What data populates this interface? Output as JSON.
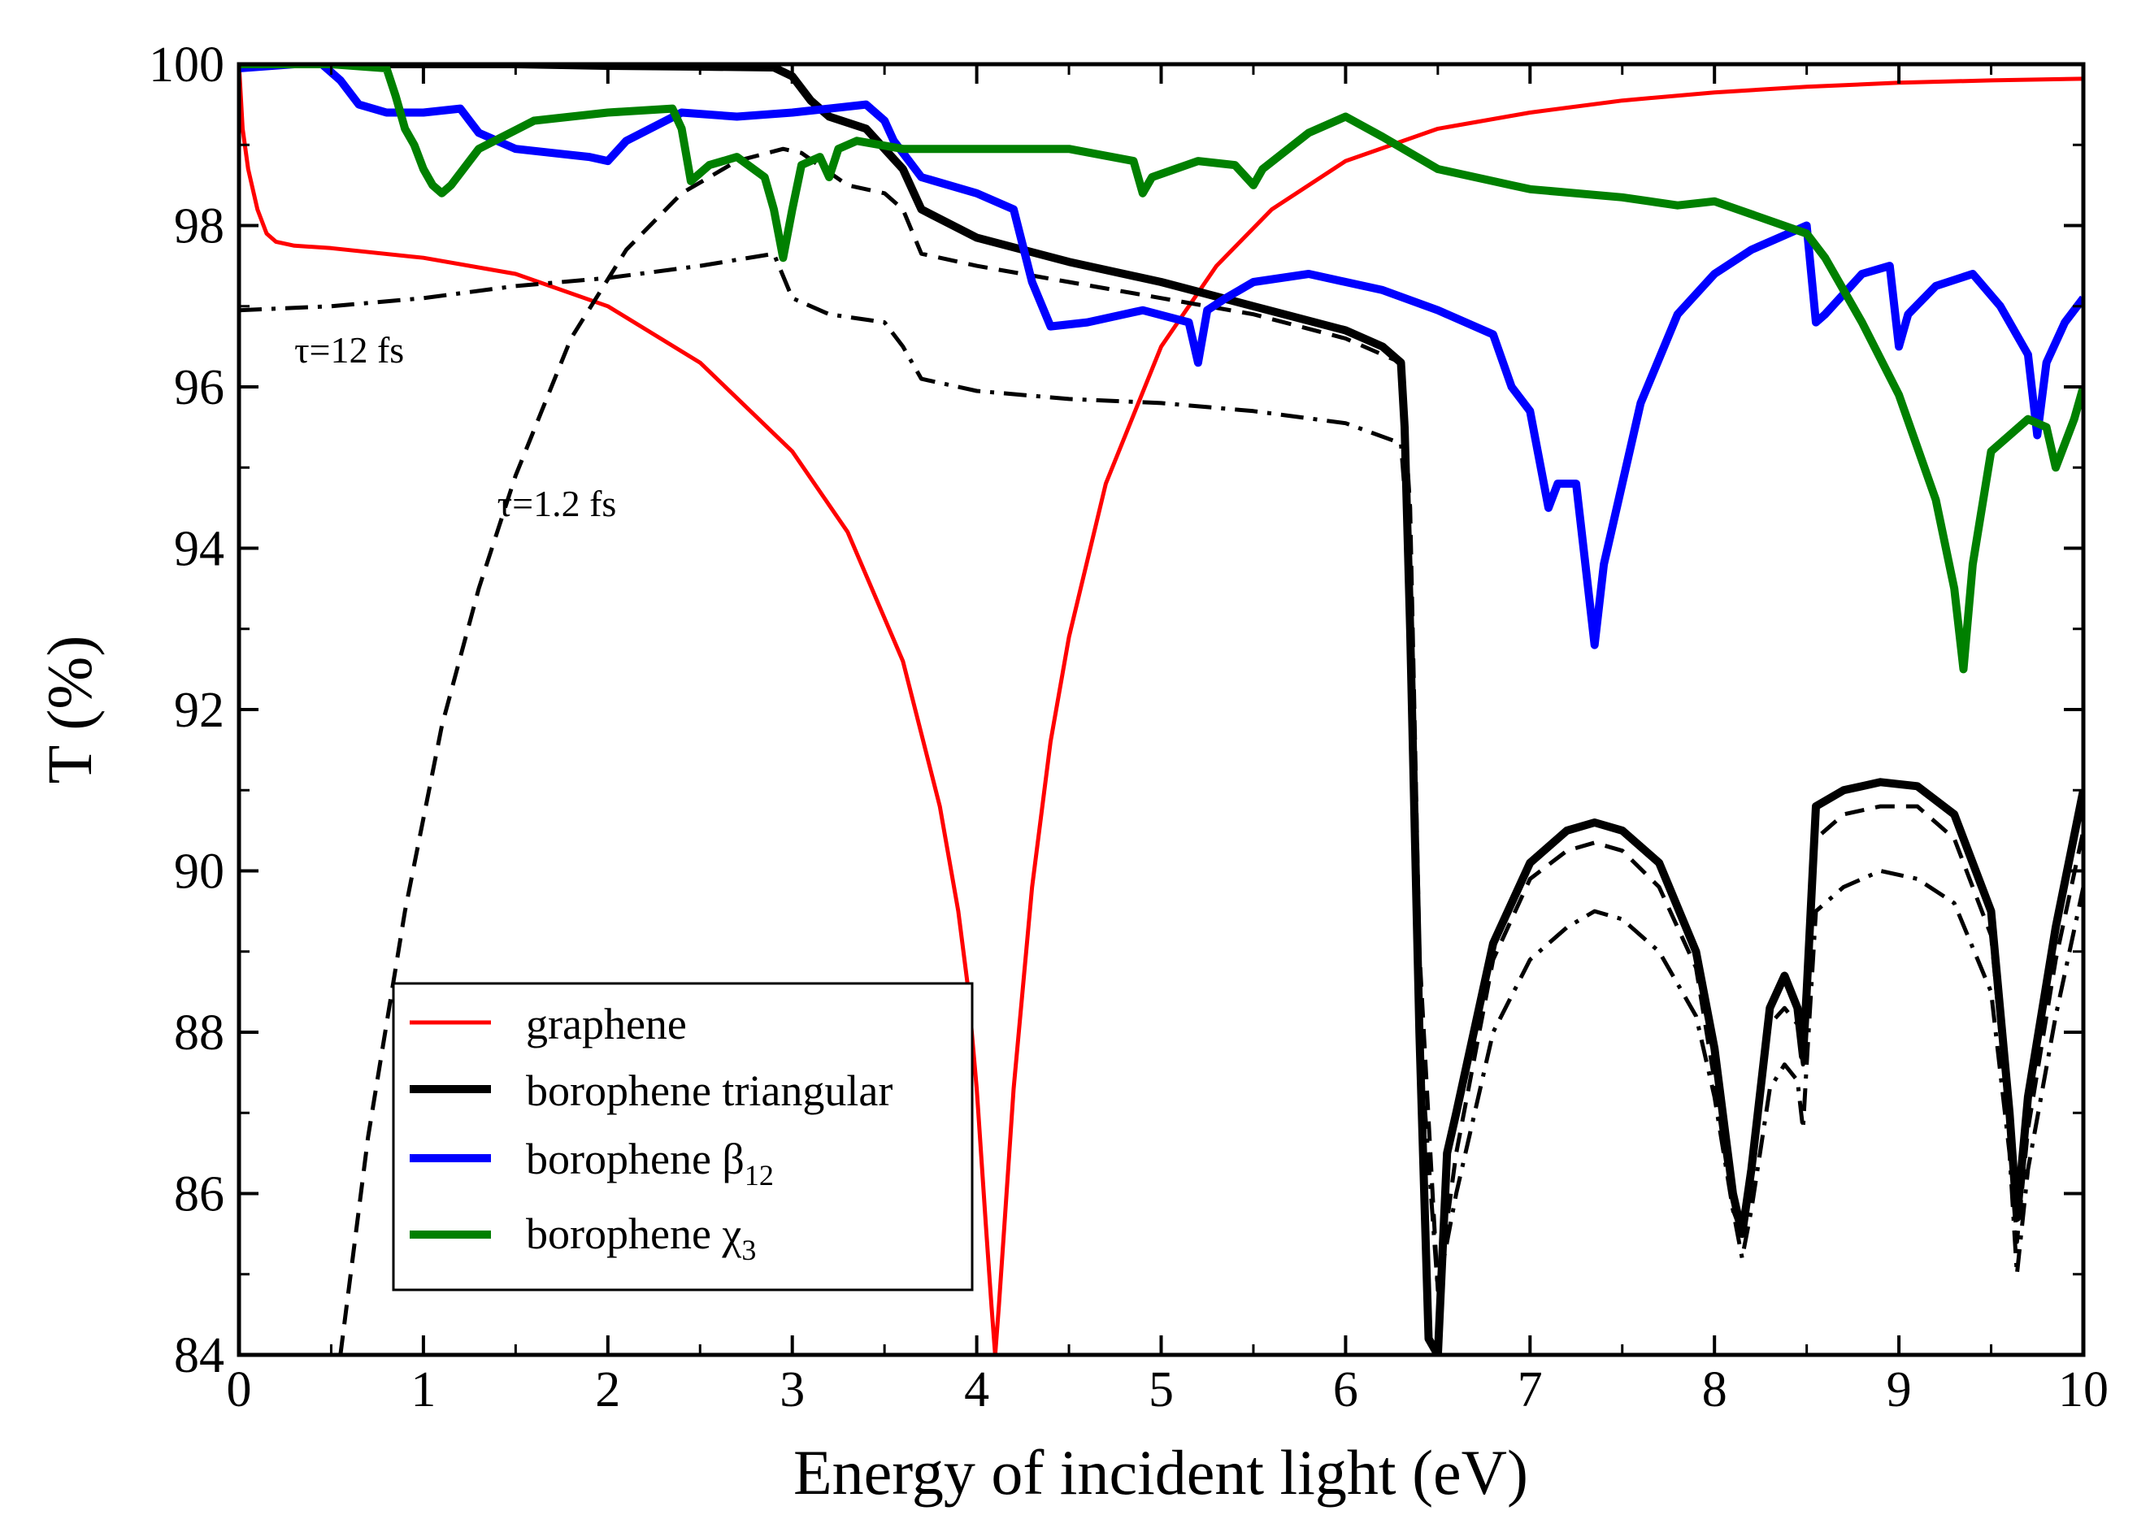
{
  "chart_data": {
    "type": "line",
    "title": "",
    "xlabel": "Energy of incident light (eV)",
    "ylabel": "T (%)",
    "xlim": [
      0,
      10
    ],
    "ylim": [
      84,
      100
    ],
    "xticks": [
      "0",
      "1",
      "2",
      "3",
      "4",
      "5",
      "6",
      "7",
      "8",
      "9",
      "10"
    ],
    "yticks": [
      "84",
      "86",
      "88",
      "90",
      "92",
      "94",
      "96",
      "98",
      "100"
    ],
    "legend": {
      "placement": "lower-left",
      "entries": [
        {
          "main": "graphene",
          "sub": "",
          "color": "#ff0000"
        },
        {
          "main": "borophene triangular",
          "sub": "",
          "color": "#000000"
        },
        {
          "main": "borophene β",
          "sub": "12",
          "color": "#0000ff"
        },
        {
          "main": "borophene χ",
          "sub": "3",
          "color": "#008000"
        }
      ]
    },
    "annotations": [
      {
        "text": "τ=12 fs",
        "x": 0.3,
        "y": 96.3
      },
      {
        "text": "τ=1.2 fs",
        "x": 1.4,
        "y": 94.4
      }
    ],
    "series": [
      {
        "name": "graphene",
        "color": "#ff0000",
        "width": 5,
        "dash": "",
        "x": [
          0,
          0.02,
          0.05,
          0.1,
          0.15,
          0.2,
          0.3,
          0.5,
          1,
          1.5,
          2,
          2.5,
          3,
          3.3,
          3.6,
          3.8,
          3.9,
          3.95,
          4.0,
          4.05,
          4.08,
          4.1,
          4.12,
          4.15,
          4.2,
          4.3,
          4.4,
          4.5,
          4.7,
          5,
          5.3,
          5.6,
          6,
          6.5,
          7,
          7.5,
          8,
          8.5,
          9,
          9.5,
          10
        ],
        "y": [
          100,
          99.2,
          98.7,
          98.2,
          97.9,
          97.8,
          97.75,
          97.72,
          97.6,
          97.4,
          97.0,
          96.3,
          95.2,
          94.2,
          92.6,
          90.8,
          89.5,
          88.6,
          87.3,
          85.6,
          84.6,
          84.0,
          84.6,
          85.6,
          87.3,
          89.8,
          91.6,
          92.9,
          94.8,
          96.5,
          97.5,
          98.2,
          98.8,
          99.2,
          99.4,
          99.55,
          99.65,
          99.72,
          99.77,
          99.8,
          99.82
        ]
      },
      {
        "name": "borophene triangular",
        "color": "#000000",
        "width": 10,
        "dash": "",
        "x": [
          0,
          0.5,
          1,
          1.5,
          2,
          2.5,
          2.9,
          3.0,
          3.1,
          3.2,
          3.4,
          3.6,
          3.7,
          4,
          4.5,
          5,
          5.5,
          6,
          6.2,
          6.3,
          6.32,
          6.35,
          6.4,
          6.45,
          6.5,
          6.55,
          6.6,
          6.8,
          7,
          7.2,
          7.35,
          7.5,
          7.7,
          7.9,
          8.0,
          8.1,
          8.15,
          8.2,
          8.3,
          8.38,
          8.45,
          8.48,
          8.5,
          8.55,
          8.7,
          8.9,
          9.1,
          9.3,
          9.5,
          9.6,
          9.64,
          9.7,
          9.85,
          10
        ],
        "y": [
          100,
          100,
          100,
          100,
          99.98,
          99.97,
          99.96,
          99.85,
          99.55,
          99.35,
          99.2,
          98.7,
          98.2,
          97.85,
          97.55,
          97.3,
          97.0,
          96.7,
          96.5,
          96.3,
          95.5,
          93.0,
          88.0,
          84.2,
          84.0,
          86.5,
          87.0,
          89.1,
          90.1,
          90.5,
          90.6,
          90.5,
          90.1,
          89.0,
          87.8,
          86.0,
          85.5,
          86.3,
          88.3,
          88.7,
          88.3,
          87.7,
          88.5,
          90.8,
          91.0,
          91.1,
          91.05,
          90.7,
          89.5,
          87.0,
          85.7,
          87.2,
          89.3,
          91.0
        ]
      },
      {
        "name": "τ=1.2 fs",
        "color": "#000000",
        "width": 5,
        "dash": "24,14",
        "x": [
          0.55,
          0.7,
          0.9,
          1.1,
          1.3,
          1.5,
          1.8,
          2.1,
          2.4,
          2.7,
          2.95,
          3.05,
          3.3,
          3.5,
          3.6,
          3.7,
          4,
          4.5,
          5,
          5.5,
          6,
          6.2,
          6.3,
          6.35,
          6.4,
          6.5,
          6.6,
          6.8,
          7,
          7.2,
          7.35,
          7.5,
          7.7,
          7.9,
          8.0,
          8.1,
          8.15,
          8.2,
          8.3,
          8.38,
          8.45,
          8.48,
          8.5,
          8.55,
          8.7,
          8.9,
          9.1,
          9.3,
          9.5,
          9.6,
          9.64,
          9.7,
          9.85,
          10
        ],
        "y": [
          84,
          86.7,
          89.5,
          91.8,
          93.5,
          94.9,
          96.6,
          97.7,
          98.4,
          98.8,
          98.95,
          98.9,
          98.5,
          98.4,
          98.2,
          97.65,
          97.5,
          97.3,
          97.1,
          96.9,
          96.6,
          96.4,
          96.3,
          94.5,
          89.0,
          84.8,
          86.5,
          88.9,
          89.9,
          90.25,
          90.35,
          90.25,
          89.8,
          88.8,
          87.4,
          85.8,
          85.5,
          86.3,
          88.1,
          88.3,
          88.1,
          87.6,
          88.4,
          90.4,
          90.7,
          90.8,
          90.8,
          90.4,
          89.2,
          86.8,
          85.4,
          86.8,
          88.9,
          90.5
        ]
      },
      {
        "name": "τ=12 fs",
        "color": "#000000",
        "width": 5,
        "dash": "28,12,5,12",
        "x": [
          0,
          0.5,
          1,
          1.5,
          2,
          2.5,
          2.9,
          3.0,
          3.2,
          3.5,
          3.6,
          3.7,
          4,
          4.5,
          5,
          5.5,
          6,
          6.3,
          6.35,
          6.4,
          6.5,
          6.6,
          6.8,
          7,
          7.2,
          7.35,
          7.5,
          7.7,
          7.9,
          8.0,
          8.1,
          8.15,
          8.2,
          8.3,
          8.38,
          8.45,
          8.48,
          8.5,
          8.55,
          8.7,
          8.9,
          9.1,
          9.3,
          9.5,
          9.6,
          9.64,
          9.7,
          9.85,
          10
        ],
        "y": [
          96.95,
          97.0,
          97.1,
          97.25,
          97.35,
          97.5,
          97.65,
          97.1,
          96.9,
          96.8,
          96.5,
          96.1,
          95.95,
          95.85,
          95.8,
          95.7,
          95.55,
          95.3,
          93.8,
          88.0,
          84.8,
          86.0,
          88.0,
          88.9,
          89.3,
          89.5,
          89.4,
          89.0,
          88.2,
          87.2,
          85.8,
          85.2,
          85.8,
          87.3,
          87.6,
          87.4,
          86.8,
          87.6,
          89.5,
          89.8,
          90.0,
          89.9,
          89.6,
          88.5,
          86.5,
          85.0,
          86.3,
          88.2,
          89.8
        ]
      },
      {
        "name": "borophene β12",
        "color": "#0000ff",
        "width": 10,
        "dash": "",
        "x": [
          0,
          0.3,
          0.45,
          0.55,
          0.65,
          0.8,
          1.0,
          1.2,
          1.25,
          1.3,
          1.5,
          1.7,
          1.9,
          2.0,
          2.1,
          2.4,
          2.7,
          3.0,
          3.2,
          3.4,
          3.5,
          3.55,
          3.7,
          4.0,
          4.2,
          4.3,
          4.4,
          4.6,
          4.9,
          5.15,
          5.2,
          5.25,
          5.35,
          5.5,
          5.8,
          6.2,
          6.5,
          6.8,
          6.9,
          7.0,
          7.1,
          7.15,
          7.25,
          7.3,
          7.35,
          7.4,
          7.6,
          7.8,
          8.0,
          8.2,
          8.4,
          8.5,
          8.55,
          8.6,
          8.8,
          8.95,
          9.0,
          9.05,
          9.2,
          9.4,
          9.55,
          9.7,
          9.75,
          9.8,
          9.9,
          10
        ],
        "y": [
          99.95,
          100,
          100,
          99.8,
          99.5,
          99.4,
          99.4,
          99.45,
          99.3,
          99.15,
          98.95,
          98.9,
          98.85,
          98.8,
          99.05,
          99.4,
          99.35,
          99.4,
          99.45,
          99.5,
          99.3,
          99.05,
          98.6,
          98.4,
          98.2,
          97.3,
          96.75,
          96.8,
          96.95,
          96.8,
          96.3,
          96.95,
          97.1,
          97.3,
          97.4,
          97.2,
          96.95,
          96.65,
          96.0,
          95.7,
          94.5,
          94.8,
          94.8,
          93.8,
          92.8,
          93.8,
          95.8,
          96.9,
          97.4,
          97.7,
          97.9,
          98.0,
          96.8,
          96.9,
          97.4,
          97.5,
          96.5,
          96.9,
          97.25,
          97.4,
          97.0,
          96.4,
          95.4,
          96.3,
          96.8,
          97.1
        ]
      },
      {
        "name": "borophene χ3",
        "color": "#008000",
        "width": 10,
        "dash": "",
        "x": [
          0,
          0.5,
          0.8,
          0.85,
          0.9,
          0.95,
          1.0,
          1.05,
          1.1,
          1.15,
          1.3,
          1.6,
          2.0,
          2.35,
          2.4,
          2.45,
          2.55,
          2.7,
          2.85,
          2.9,
          2.95,
          3.0,
          3.05,
          3.15,
          3.2,
          3.25,
          3.35,
          3.6,
          4.0,
          4.5,
          4.85,
          4.9,
          4.95,
          5.2,
          5.4,
          5.5,
          5.55,
          5.8,
          6.0,
          6.2,
          6.5,
          6.8,
          6.9,
          7.0,
          7.5,
          7.8,
          8.0,
          8.5,
          8.6,
          8.8,
          9.0,
          9.2,
          9.3,
          9.35,
          9.4,
          9.5,
          9.7,
          9.8,
          9.85,
          9.95,
          10
        ],
        "y": [
          100,
          100,
          99.95,
          99.6,
          99.2,
          99.0,
          98.7,
          98.5,
          98.4,
          98.5,
          98.95,
          99.3,
          99.4,
          99.45,
          99.2,
          98.55,
          98.75,
          98.85,
          98.6,
          98.2,
          97.6,
          98.2,
          98.75,
          98.85,
          98.6,
          98.95,
          99.05,
          98.95,
          98.95,
          98.95,
          98.8,
          98.4,
          98.6,
          98.8,
          98.75,
          98.5,
          98.7,
          99.15,
          99.35,
          99.1,
          98.7,
          98.55,
          98.5,
          98.45,
          98.35,
          98.25,
          98.3,
          97.9,
          97.6,
          96.8,
          95.9,
          94.6,
          93.5,
          92.5,
          93.8,
          95.2,
          95.6,
          95.5,
          95.0,
          95.6,
          96.0
        ]
      }
    ]
  }
}
